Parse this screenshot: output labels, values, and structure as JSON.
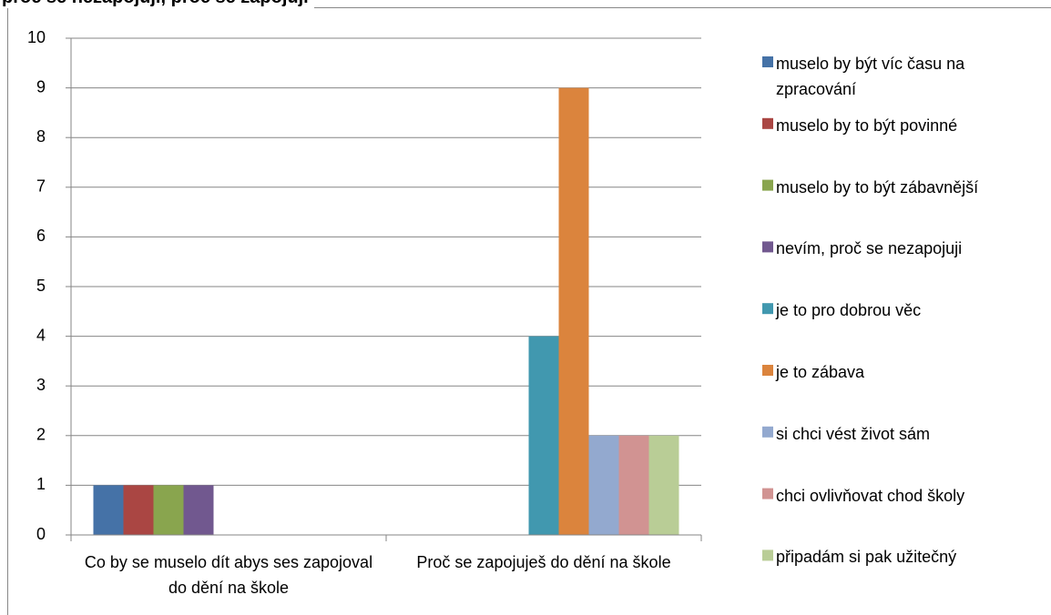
{
  "chart_data": {
    "type": "bar",
    "title": "proč se nezapojuji, proč se zapojuji",
    "categories": [
      "Co by se muselo dít abys ses zapojoval do dění na škole",
      "Proč se zapojuješ do dění na škole"
    ],
    "series": [
      {
        "name": "muselo by být víc času na zpracování",
        "color": "#4572a7",
        "values": [
          1,
          0
        ]
      },
      {
        "name": "muselo by to být povinné",
        "color": "#aa4643",
        "values": [
          1,
          0
        ]
      },
      {
        "name": "muselo by to být zábavnější",
        "color": "#89a54e",
        "values": [
          1,
          0
        ]
      },
      {
        "name": "nevím, proč se nezapojuji",
        "color": "#71588f",
        "values": [
          1,
          0
        ]
      },
      {
        "name": "je to pro dobrou věc",
        "color": "#4198af",
        "values": [
          0,
          4
        ]
      },
      {
        "name": "je to zábava",
        "color": "#db843d",
        "values": [
          0,
          9
        ]
      },
      {
        "name": "si chci vést život sám",
        "color": "#93a9cf",
        "values": [
          0,
          2
        ]
      },
      {
        "name": "chci ovlivňovat chod školy",
        "color": "#d19392",
        "values": [
          0,
          2
        ]
      },
      {
        "name": "připadám si pak užitečný",
        "color": "#b9cd96",
        "values": [
          0,
          2
        ]
      }
    ],
    "ylim": [
      0,
      10
    ],
    "yticks": [
      0,
      1,
      2,
      3,
      4,
      5,
      6,
      7,
      8,
      9,
      10
    ],
    "grid": true,
    "legend": "right"
  }
}
